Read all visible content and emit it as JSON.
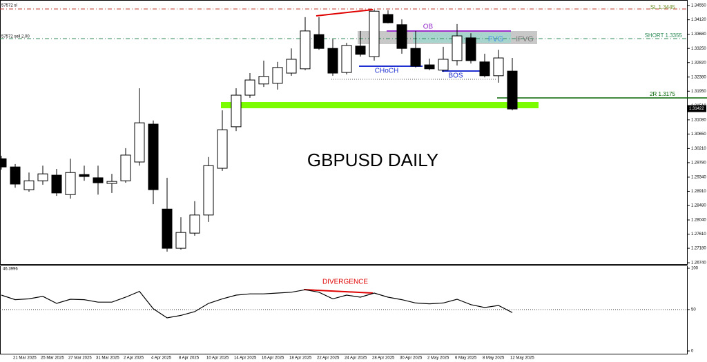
{
  "chart_data": [
    {
      "type": "candlestick",
      "title": "GBPUSD DAILY",
      "categories": [
        null,
        "21 Mar 2025",
        null,
        "25 Mar 2025",
        null,
        "27 Mar 2025",
        null,
        "31 Mar 2025",
        null,
        "2 Apr 2025",
        null,
        "4 Apr 2025",
        null,
        "8 Apr 2025",
        null,
        "10 Apr 2025",
        null,
        "14 Apr 2025",
        null,
        "16 Apr 2025",
        null,
        "18 Apr 2025",
        null,
        "22 Apr 2025",
        null,
        "24 Apr 2025",
        null,
        "28 Apr 2025",
        null,
        "30 Apr 2025",
        null,
        "2 May 2025",
        null,
        "6 May 2025",
        null,
        "8 May 2025",
        null,
        "12 May 2025"
      ],
      "open": [
        1.299,
        1.2965,
        1.2896,
        1.2923,
        1.294,
        1.2881,
        1.2942,
        1.2932,
        1.2915,
        1.2923,
        1.298,
        1.3095,
        1.2837,
        1.2718,
        1.2764,
        1.2819,
        1.2961,
        1.3087,
        1.3183,
        1.3217,
        1.3219,
        1.325,
        1.3263,
        1.3367,
        1.3325,
        1.3252,
        1.3332,
        1.33,
        1.3428,
        1.3397,
        1.3325,
        1.3275,
        1.3259,
        1.3288,
        1.3357,
        1.3284,
        1.3242,
        1.3256
      ],
      "high": [
        1.2999,
        1.2974,
        1.2948,
        1.2969,
        1.2959,
        1.299,
        1.2969,
        1.2969,
        1.2944,
        1.3022,
        1.3204,
        1.3106,
        1.2932,
        1.2812,
        1.2861,
        1.2995,
        1.3137,
        1.3204,
        1.325,
        1.3288,
        1.3284,
        1.3325,
        1.342,
        1.342,
        1.3353,
        1.3342,
        1.3378,
        1.3443,
        1.3441,
        1.3413,
        1.3378,
        1.3294,
        1.333,
        1.3399,
        1.3371,
        1.3309,
        1.3321,
        1.3296
      ],
      "low": [
        1.2957,
        1.2902,
        1.289,
        1.2911,
        1.2877,
        1.2869,
        1.2923,
        1.2881,
        1.2886,
        1.2917,
        1.2969,
        1.2852,
        1.2708,
        1.2714,
        1.2756,
        1.2798,
        1.2953,
        1.3074,
        1.3175,
        1.3208,
        1.32,
        1.3242,
        1.3259,
        1.3321,
        1.3242,
        1.3246,
        1.33,
        1.3288,
        1.3401,
        1.3309,
        1.3267,
        1.3259,
        1.3254,
        1.3273,
        1.3279,
        1.3237,
        1.3221,
        1.3137
      ],
      "close": [
        1.2965,
        1.2913,
        1.2923,
        1.2944,
        1.2886,
        1.2948,
        1.2936,
        1.2917,
        1.2921,
        1.3001,
        1.3099,
        1.2896,
        1.2718,
        1.2766,
        1.2819,
        1.2969,
        1.3078,
        1.3183,
        1.3229,
        1.324,
        1.3267,
        1.3292,
        1.3378,
        1.3325,
        1.325,
        1.3334,
        1.3307,
        1.3438,
        1.3403,
        1.3325,
        1.3271,
        1.3263,
        1.3292,
        1.3363,
        1.3288,
        1.3242,
        1.3296,
        1.3141
      ],
      "up_color": "#ffffff",
      "down_color": "#000000",
      "ylim": [
        1.267,
        1.3472
      ],
      "yticks": [
        {
          "value": 1.3455,
          "label": "1.34550"
        },
        {
          "value": 1.3412,
          "label": "1.34120"
        },
        {
          "value": 1.3368,
          "label": "1.33680"
        },
        {
          "value": 1.3325,
          "label": "1.33250"
        },
        {
          "value": 1.3282,
          "label": "1.32820"
        },
        {
          "value": 1.3238,
          "label": "1.32380"
        },
        {
          "value": 1.3195,
          "label": "1.31950"
        },
        {
          "value": 1.3151,
          "label": "1.31510"
        },
        {
          "value": 1.3108,
          "label": "1.31080"
        },
        {
          "value": 1.3065,
          "label": "1.30650"
        },
        {
          "value": 1.3021,
          "label": "1.30210"
        },
        {
          "value": 1.2978,
          "label": "1.29780"
        },
        {
          "value": 1.2934,
          "label": "1.29340"
        },
        {
          "value": 1.2891,
          "label": "1.28910"
        },
        {
          "value": 1.2848,
          "label": "1.28480"
        },
        {
          "value": 1.2804,
          "label": "1.28040"
        },
        {
          "value": 1.2761,
          "label": "1.27610"
        },
        {
          "value": 1.2718,
          "label": "1.27180"
        },
        {
          "value": 1.2674,
          "label": "1.26740"
        }
      ],
      "current_price": 1.31422,
      "annotations": {
        "sl": "SL 1.3445",
        "short": "SHORT 1.3355",
        "target": "2R 1.3175",
        "order_sl": "57572 sl",
        "order_sell": "57572 sell 2.00",
        "ob": "OB",
        "fvg": "FVG",
        "ifvg": "IFVG",
        "choch": "CHoCH",
        "bos": "BOS"
      }
    },
    {
      "type": "line",
      "color": "#000000",
      "values": [
        67.5,
        62,
        63,
        66,
        57.5,
        62.5,
        62,
        59,
        59,
        65,
        72,
        51,
        40,
        43,
        47.5,
        57.5,
        63,
        67.5,
        69,
        69,
        70,
        71,
        74,
        71,
        63,
        67.5,
        65,
        70,
        65,
        62,
        58,
        57,
        58,
        62.5,
        56,
        52.5,
        55,
        46.3996
      ],
      "ylim": [
        0,
        100
      ],
      "yticks": [
        0,
        50,
        100
      ],
      "annotation": "DIVERGENCE"
    }
  ]
}
